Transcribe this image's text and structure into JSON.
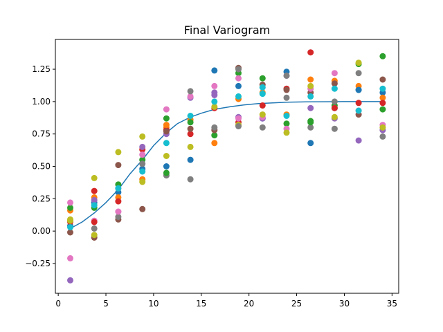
{
  "chart_data": {
    "type": "scatter",
    "title": "Final Variogram",
    "xlabel": "",
    "ylabel": "",
    "xlim": [
      -0.3,
      35.7
    ],
    "ylim": [
      -0.48,
      1.48
    ],
    "xticks": [
      0,
      5,
      10,
      15,
      20,
      25,
      30,
      35
    ],
    "yticks": [
      -0.25,
      0.0,
      0.25,
      0.5,
      0.75,
      1.0,
      1.25
    ],
    "ytick_labels": [
      "−0.25",
      "0.00",
      "0.25",
      "0.50",
      "0.75",
      "1.00",
      "1.25"
    ],
    "grid": false,
    "legend": "none",
    "colors": [
      "#1f77b4",
      "#ff7f0e",
      "#2ca02c",
      "#d62728",
      "#9467bd",
      "#8c564b",
      "#e377c2",
      "#7f7f7f",
      "#bcbd22",
      "#17becf"
    ],
    "model_color": "#1f77b4",
    "x": [
      1.26,
      3.78,
      6.3,
      8.82,
      11.34,
      13.86,
      16.38,
      18.9,
      21.42,
      23.94,
      26.46,
      28.98,
      31.5,
      34.02
    ],
    "series": [
      {
        "values": [
          0.04,
          0.22,
          0.3,
          0.48,
          0.5,
          0.55,
          1.24,
          1.12,
          0.87,
          1.23,
          0.68,
          0.95,
          1.09,
          1.07
        ]
      },
      {
        "values": [
          0.16,
          0.26,
          0.26,
          0.4,
          0.8,
          0.86,
          0.68,
          1.02,
          1.07,
          0.9,
          1.17,
          1.16,
          1.12,
          1.03
        ]
      },
      {
        "values": [
          0.18,
          0.18,
          0.36,
          0.55,
          0.87,
          0.84,
          0.74,
          1.22,
          1.18,
          0.83,
          0.85,
          0.97,
          1.29,
          1.35
        ]
      },
      {
        "values": [
          0.07,
          0.31,
          0.23,
          0.63,
          0.78,
          0.75,
          0.95,
          0.84,
          0.97,
          1.1,
          1.38,
          0.95,
          0.99,
          0.99
        ]
      },
      {
        "values": [
          -0.38,
          0.24,
          0.33,
          0.65,
          0.75,
          1.03,
          1.07,
          0.88,
          0.87,
          1.2,
          0.95,
          0.87,
          0.7,
          0.78
        ]
      },
      {
        "values": [
          -0.01,
          -0.05,
          0.09,
          0.17,
          0.77,
          0.79,
          0.78,
          1.26,
          1.13,
          1.09,
          1.07,
          1.14,
          0.9,
          1.17
        ]
      },
      {
        "values": [
          0.22,
          0.08,
          0.15,
          0.59,
          0.94,
          1.04,
          1.12,
          0.87,
          0.88,
          0.79,
          1.1,
          1.22,
          0.93,
          0.82
        ]
      },
      {
        "values": [
          0.08,
          0.02,
          0.11,
          0.52,
          0.43,
          0.4,
          0.8,
          1.25,
          0.8,
          1.03,
          0.8,
          0.79,
          1.22,
          0.73
        ]
      },
      {
        "values": [
          0.09,
          0.41,
          0.61,
          0.73,
          0.58,
          0.65,
          0.96,
          0.82,
          0.9,
          0.76,
          1.12,
          0.88,
          1.3,
          0.8
        ]
      },
      {
        "values": [
          0.03,
          0.2,
          0.33,
          0.46,
          0.68,
          0.89,
          1.0,
          1.04,
          1.11,
          0.89,
          1.04,
          1.1,
          0.93,
          1.1
        ]
      }
    ],
    "extra_points": [
      {
        "x": 1.26,
        "y": -0.21,
        "color": "#e377c2"
      },
      {
        "x": 1.26,
        "y": 0.08,
        "color": "#bcbd22"
      },
      {
        "x": 3.78,
        "y": -0.03,
        "color": "#bcbd22"
      },
      {
        "x": 3.78,
        "y": 0.07,
        "color": "#d62728"
      },
      {
        "x": 6.3,
        "y": 0.51,
        "color": "#8c564b"
      },
      {
        "x": 6.3,
        "y": 0.15,
        "color": "#e377c2"
      },
      {
        "x": 8.82,
        "y": 0.38,
        "color": "#bcbd22"
      },
      {
        "x": 11.34,
        "y": 0.45,
        "color": "#2ca02c"
      },
      {
        "x": 11.34,
        "y": 0.82,
        "color": "#ff7f0e"
      },
      {
        "x": 13.86,
        "y": 1.08,
        "color": "#7f7f7f"
      },
      {
        "x": 16.38,
        "y": 1.05,
        "color": "#9467bd"
      },
      {
        "x": 18.9,
        "y": 1.18,
        "color": "#e377c2"
      },
      {
        "x": 18.9,
        "y": 0.81,
        "color": "#7f7f7f"
      },
      {
        "x": 21.42,
        "y": 1.06,
        "color": "#17becf"
      },
      {
        "x": 23.94,
        "y": 1.2,
        "color": "#7f7f7f"
      },
      {
        "x": 26.46,
        "y": 0.84,
        "color": "#2ca02c"
      },
      {
        "x": 28.98,
        "y": 1.0,
        "color": "#7f7f7f"
      },
      {
        "x": 31.5,
        "y": 1.09,
        "color": "#1f77b4"
      },
      {
        "x": 34.02,
        "y": 0.94,
        "color": "#2ca02c"
      }
    ],
    "model_curve": {
      "x": [
        1.26,
        2.5,
        3.78,
        5.0,
        6.3,
        7.5,
        8.82,
        10.0,
        11.34,
        12.5,
        13.86,
        15.0,
        16.38,
        18.0,
        19.5,
        21.0,
        22.5,
        24.0,
        26.0,
        28.0,
        30.0,
        32.0,
        34.02
      ],
      "y": [
        0.02,
        0.07,
        0.14,
        0.22,
        0.32,
        0.44,
        0.55,
        0.66,
        0.76,
        0.83,
        0.88,
        0.91,
        0.94,
        0.96,
        0.975,
        0.985,
        0.99,
        0.995,
        0.998,
        0.999,
        1.0,
        1.0,
        1.0
      ]
    }
  }
}
